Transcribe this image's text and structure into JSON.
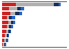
{
  "chart_data": {
    "type": "bar",
    "orientation": "horizontal",
    "stacked": true,
    "categories": [
      null,
      null,
      null,
      null,
      null,
      null,
      null,
      null,
      null,
      null
    ],
    "series": [
      {
        "color": "#cc2222",
        "values": [
          14,
          7,
          8,
          5,
          6,
          5,
          4,
          3,
          2,
          1
        ]
      },
      {
        "color": "#b0b0b0",
        "values": [
          38,
          8,
          5,
          2,
          3,
          2,
          2,
          2,
          2,
          1
        ]
      },
      {
        "color": "#1a2e5a",
        "values": [
          5,
          4,
          4,
          3,
          2,
          2,
          2,
          1,
          1,
          1
        ]
      },
      {
        "color": "#2266cc",
        "values": [
          2,
          3,
          3,
          3,
          2,
          2,
          1,
          1,
          1,
          1
        ]
      }
    ],
    "xlim": [
      0,
      65
    ],
    "tick_labels": false,
    "grid": false
  }
}
